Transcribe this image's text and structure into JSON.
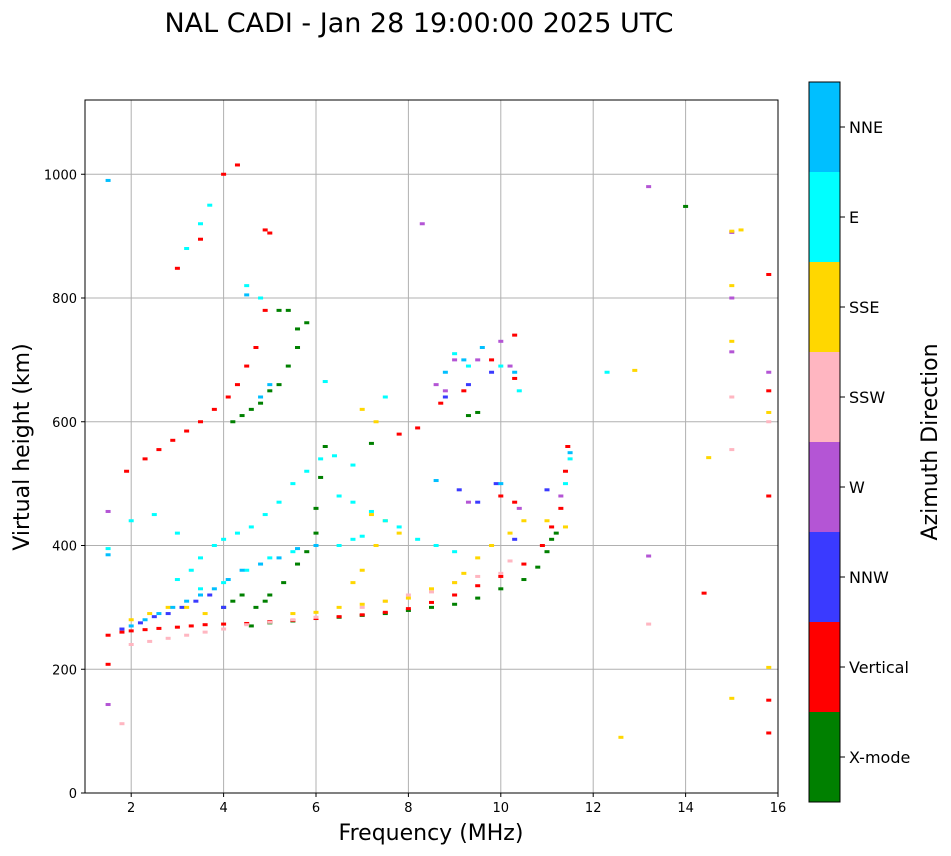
{
  "chart_data": {
    "type": "scatter",
    "title": "NAL CADI - Jan 28 19:00:00 2025 UTC",
    "xlabel": "Frequency (MHz)",
    "ylabel": "Virtual height (km)",
    "xlim": [
      1,
      16
    ],
    "ylim": [
      0,
      1120
    ],
    "xticks": [
      "2",
      "4",
      "6",
      "8",
      "10",
      "12",
      "14",
      "16"
    ],
    "yticks": [
      "0",
      "200",
      "400",
      "600",
      "800",
      "1000"
    ],
    "grid": true,
    "colorbar": {
      "label": "Azimuth Direction",
      "categories": [
        {
          "name": "X-mode",
          "color": "#008000"
        },
        {
          "name": "Vertical",
          "color": "#ff0000"
        },
        {
          "name": "NNW",
          "color": "#3a3aff"
        },
        {
          "name": "W",
          "color": "#b455d5"
        },
        {
          "name": "SSW",
          "color": "#ffb6c1"
        },
        {
          "name": "SSE",
          "color": "#ffd700"
        },
        {
          "name": "E",
          "color": "#00ffff"
        },
        {
          "name": "NNE",
          "color": "#00bfff"
        }
      ]
    },
    "series": [
      {
        "name": "X-mode",
        "points": [
          [
            4.6,
            270
          ],
          [
            5.0,
            275
          ],
          [
            5.5,
            278
          ],
          [
            6.0,
            282
          ],
          [
            6.5,
            284
          ],
          [
            7.0,
            287
          ],
          [
            7.5,
            290
          ],
          [
            8.0,
            295
          ],
          [
            8.5,
            300
          ],
          [
            9.0,
            305
          ],
          [
            9.5,
            315
          ],
          [
            10.0,
            330
          ],
          [
            10.5,
            345
          ],
          [
            10.8,
            365
          ],
          [
            11.0,
            390
          ],
          [
            11.1,
            410
          ],
          [
            11.2,
            420
          ],
          [
            5.0,
            320
          ],
          [
            5.3,
            340
          ],
          [
            5.6,
            370
          ],
          [
            5.8,
            390
          ],
          [
            6.0,
            420
          ],
          [
            6.0,
            460
          ],
          [
            6.1,
            510
          ],
          [
            6.2,
            560
          ],
          [
            4.2,
            600
          ],
          [
            4.4,
            610
          ],
          [
            4.6,
            620
          ],
          [
            4.8,
            630
          ],
          [
            5.0,
            650
          ],
          [
            5.2,
            660
          ],
          [
            5.4,
            690
          ],
          [
            5.6,
            720
          ],
          [
            5.8,
            760
          ],
          [
            5.2,
            780
          ],
          [
            5.4,
            780
          ],
          [
            5.6,
            750
          ],
          [
            4.0,
            300
          ],
          [
            4.2,
            310
          ],
          [
            4.4,
            320
          ],
          [
            4.7,
            300
          ],
          [
            4.9,
            310
          ],
          [
            7.2,
            565
          ],
          [
            9.3,
            610
          ],
          [
            9.5,
            615
          ],
          [
            14.0,
            948
          ]
        ]
      },
      {
        "name": "Vertical",
        "points": [
          [
            1.5,
            255
          ],
          [
            1.8,
            260
          ],
          [
            2.0,
            262
          ],
          [
            2.3,
            264
          ],
          [
            2.6,
            266
          ],
          [
            3.0,
            268
          ],
          [
            3.3,
            270
          ],
          [
            3.6,
            272
          ],
          [
            4.0,
            273
          ],
          [
            4.5,
            274
          ],
          [
            5.0,
            277
          ],
          [
            5.5,
            279
          ],
          [
            6.0,
            282
          ],
          [
            6.5,
            285
          ],
          [
            7.0,
            288
          ],
          [
            7.5,
            292
          ],
          [
            8.0,
            298
          ],
          [
            8.5,
            308
          ],
          [
            9.0,
            320
          ],
          [
            9.5,
            335
          ],
          [
            10.0,
            350
          ],
          [
            10.5,
            370
          ],
          [
            10.9,
            400
          ],
          [
            11.1,
            430
          ],
          [
            11.3,
            460
          ],
          [
            11.4,
            520
          ],
          [
            11.45,
            560
          ],
          [
            1.5,
            208
          ],
          [
            1.9,
            520
          ],
          [
            2.3,
            540
          ],
          [
            2.6,
            555
          ],
          [
            2.9,
            570
          ],
          [
            3.2,
            585
          ],
          [
            3.5,
            600
          ],
          [
            3.8,
            620
          ],
          [
            4.1,
            640
          ],
          [
            4.3,
            660
          ],
          [
            4.5,
            690
          ],
          [
            4.7,
            720
          ],
          [
            4.9,
            780
          ],
          [
            3.0,
            848
          ],
          [
            3.5,
            895
          ],
          [
            4.0,
            1000
          ],
          [
            4.3,
            1015
          ],
          [
            4.9,
            910
          ],
          [
            5.0,
            905
          ],
          [
            8.7,
            630
          ],
          [
            9.2,
            650
          ],
          [
            9.8,
            700
          ],
          [
            10.3,
            740
          ],
          [
            10.3,
            670
          ],
          [
            10.0,
            480
          ],
          [
            10.3,
            470
          ],
          [
            15.8,
            838
          ],
          [
            15.8,
            650
          ],
          [
            15.8,
            480
          ],
          [
            15.8,
            150
          ],
          [
            15.8,
            97
          ],
          [
            14.4,
            323
          ],
          [
            7.8,
            580
          ],
          [
            8.2,
            590
          ]
        ]
      },
      {
        "name": "NNW",
        "points": [
          [
            1.8,
            265
          ],
          [
            2.2,
            275
          ],
          [
            2.5,
            285
          ],
          [
            2.8,
            290
          ],
          [
            3.1,
            300
          ],
          [
            3.4,
            310
          ],
          [
            3.7,
            320
          ],
          [
            4.0,
            300
          ],
          [
            9.1,
            490
          ],
          [
            9.5,
            470
          ],
          [
            9.9,
            500
          ],
          [
            10.3,
            410
          ],
          [
            11.0,
            490
          ],
          [
            8.8,
            640
          ],
          [
            9.3,
            660
          ],
          [
            9.8,
            680
          ]
        ]
      },
      {
        "name": "W",
        "points": [
          [
            1.5,
            455
          ],
          [
            1.5,
            143
          ],
          [
            8.3,
            920
          ],
          [
            8.6,
            660
          ],
          [
            8.8,
            650
          ],
          [
            9.0,
            700
          ],
          [
            9.5,
            700
          ],
          [
            10.0,
            730
          ],
          [
            10.2,
            690
          ],
          [
            11.3,
            480
          ],
          [
            13.2,
            980
          ],
          [
            13.2,
            383
          ],
          [
            15.0,
            906
          ],
          [
            15.0,
            800
          ],
          [
            15.0,
            713
          ],
          [
            15.8,
            680
          ],
          [
            9.3,
            470
          ],
          [
            10.4,
            460
          ]
        ]
      },
      {
        "name": "SSW",
        "points": [
          [
            2.0,
            240
          ],
          [
            2.4,
            245
          ],
          [
            2.8,
            250
          ],
          [
            3.2,
            255
          ],
          [
            3.6,
            260
          ],
          [
            4.0,
            265
          ],
          [
            4.5,
            272
          ],
          [
            5.0,
            276
          ],
          [
            5.5,
            280
          ],
          [
            6.0,
            284
          ],
          [
            7.0,
            300
          ],
          [
            7.5,
            310
          ],
          [
            8.0,
            320
          ],
          [
            8.5,
            325
          ],
          [
            9.0,
            340
          ],
          [
            9.5,
            350
          ],
          [
            10.0,
            355
          ],
          [
            10.2,
            375
          ],
          [
            1.8,
            112
          ],
          [
            13.2,
            273
          ],
          [
            15.0,
            640
          ],
          [
            15.0,
            555
          ],
          [
            15.8,
            600
          ]
        ]
      },
      {
        "name": "SSE",
        "points": [
          [
            2.0,
            280
          ],
          [
            2.4,
            290
          ],
          [
            2.8,
            300
          ],
          [
            3.2,
            300
          ],
          [
            3.6,
            290
          ],
          [
            5.5,
            290
          ],
          [
            6.0,
            292
          ],
          [
            6.5,
            300
          ],
          [
            7.0,
            305
          ],
          [
            7.5,
            310
          ],
          [
            8.0,
            315
          ],
          [
            8.5,
            330
          ],
          [
            9.0,
            340
          ],
          [
            9.2,
            355
          ],
          [
            9.5,
            380
          ],
          [
            9.8,
            400
          ],
          [
            10.2,
            420
          ],
          [
            10.5,
            440
          ],
          [
            11.0,
            440
          ],
          [
            11.4,
            430
          ],
          [
            6.8,
            340
          ],
          [
            7.0,
            360
          ],
          [
            7.3,
            400
          ],
          [
            7.2,
            450
          ],
          [
            7.5,
            440
          ],
          [
            7.8,
            420
          ],
          [
            7.0,
            620
          ],
          [
            7.3,
            600
          ],
          [
            12.6,
            90
          ],
          [
            12.9,
            683
          ],
          [
            14.5,
            542
          ],
          [
            15.0,
            908
          ],
          [
            15.2,
            910
          ],
          [
            15.0,
            820
          ],
          [
            15.0,
            730
          ],
          [
            15.0,
            153
          ],
          [
            15.8,
            615
          ],
          [
            15.8,
            203
          ]
        ]
      },
      {
        "name": "E",
        "points": [
          [
            1.5,
            395
          ],
          [
            2.0,
            440
          ],
          [
            2.5,
            450
          ],
          [
            3.0,
            420
          ],
          [
            3.3,
            360
          ],
          [
            3.5,
            380
          ],
          [
            3.8,
            400
          ],
          [
            4.0,
            410
          ],
          [
            4.3,
            420
          ],
          [
            4.6,
            430
          ],
          [
            4.9,
            450
          ],
          [
            5.2,
            470
          ],
          [
            5.5,
            500
          ],
          [
            5.8,
            520
          ],
          [
            6.1,
            540
          ],
          [
            6.4,
            545
          ],
          [
            6.8,
            530
          ],
          [
            6.5,
            480
          ],
          [
            6.8,
            470
          ],
          [
            7.2,
            455
          ],
          [
            7.5,
            440
          ],
          [
            7.8,
            430
          ],
          [
            8.2,
            410
          ],
          [
            8.6,
            400
          ],
          [
            9.0,
            390
          ],
          [
            6.5,
            400
          ],
          [
            6.8,
            410
          ],
          [
            7.0,
            415
          ],
          [
            3.0,
            345
          ],
          [
            3.5,
            330
          ],
          [
            4.0,
            340
          ],
          [
            4.5,
            360
          ],
          [
            5.0,
            380
          ],
          [
            5.5,
            390
          ],
          [
            3.2,
            880
          ],
          [
            3.5,
            920
          ],
          [
            3.7,
            950
          ],
          [
            4.5,
            820
          ],
          [
            4.8,
            800
          ],
          [
            6.2,
            665
          ],
          [
            7.5,
            640
          ],
          [
            9.0,
            710
          ],
          [
            9.3,
            690
          ],
          [
            10.0,
            690
          ],
          [
            10.4,
            650
          ],
          [
            12.3,
            680
          ],
          [
            11.5,
            540
          ],
          [
            11.4,
            500
          ]
        ]
      },
      {
        "name": "NNE",
        "points": [
          [
            1.5,
            990
          ],
          [
            1.5,
            385
          ],
          [
            2.0,
            270
          ],
          [
            2.3,
            280
          ],
          [
            2.6,
            290
          ],
          [
            2.9,
            300
          ],
          [
            3.2,
            310
          ],
          [
            3.5,
            320
          ],
          [
            3.8,
            330
          ],
          [
            4.1,
            345
          ],
          [
            4.4,
            360
          ],
          [
            4.8,
            370
          ],
          [
            5.2,
            380
          ],
          [
            5.6,
            395
          ],
          [
            6.0,
            400
          ],
          [
            4.8,
            640
          ],
          [
            5.0,
            660
          ],
          [
            4.5,
            805
          ],
          [
            8.6,
            505
          ],
          [
            8.8,
            680
          ],
          [
            9.2,
            700
          ],
          [
            9.6,
            720
          ],
          [
            10.0,
            500
          ],
          [
            10.3,
            680
          ],
          [
            11.5,
            550
          ]
        ]
      }
    ]
  }
}
